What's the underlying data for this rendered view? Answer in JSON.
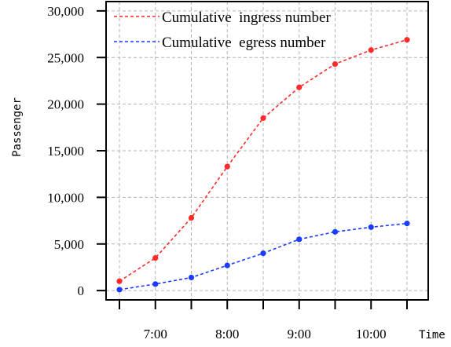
{
  "chart_data": {
    "type": "line",
    "xlabel": "Time",
    "ylabel": "Passenger",
    "x": [
      "6:30",
      "7:00",
      "7:30",
      "8:00",
      "8:30",
      "9:00",
      "9:30",
      "10:00",
      "10:30"
    ],
    "x_tick_labels": [
      "7:00",
      "8:00",
      "9:00",
      "10:00"
    ],
    "y_tick_labels": [
      "0",
      "5,000",
      "10,000",
      "15,000",
      "20,000",
      "25,000",
      "30,000"
    ],
    "ylim": [
      -1000,
      31000
    ],
    "grid": true,
    "legend_position": "top-left",
    "series": [
      {
        "name": "Cumulative  ingress number",
        "color": "#ff2a2a",
        "values": [
          1000,
          3500,
          7800,
          13300,
          18500,
          21800,
          24300,
          25800,
          26900
        ]
      },
      {
        "name": "Cumulative  egress number",
        "color": "#1a3cff",
        "values": [
          100,
          700,
          1400,
          2700,
          4000,
          5500,
          6300,
          6800,
          7200
        ]
      }
    ]
  }
}
